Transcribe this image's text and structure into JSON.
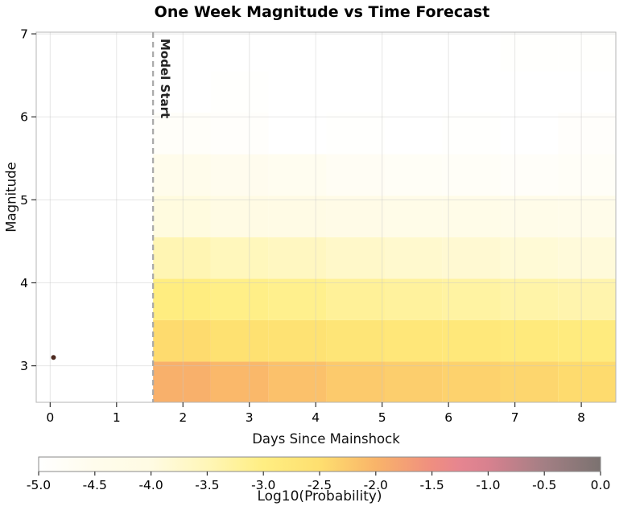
{
  "chart_data": {
    "type": "heatmap",
    "title": "One Week Magnitude vs Time Forecast",
    "xlabel": "Days Since Mainshock",
    "ylabel": "Magnitude",
    "xlim": [
      -0.21,
      8.52
    ],
    "ylim": [
      2.56,
      7.02
    ],
    "x_ticks": [
      0,
      1,
      2,
      3,
      4,
      5,
      6,
      7,
      8
    ],
    "y_ticks": [
      3,
      4,
      5,
      6,
      7
    ],
    "grid": true,
    "model_start_line": {
      "x": 1.55,
      "label": "Model Start",
      "color": "#a9a9a9"
    },
    "mainshock_point": {
      "x": 0.05,
      "y": 3.1,
      "color": "#4d2a20"
    },
    "heatmap": {
      "rows_bottom_to_top": true,
      "x_edges": [
        1.55,
        2.42,
        3.29,
        4.16,
        5.04,
        5.91,
        6.78,
        7.65,
        8.52
      ],
      "y_edges": [
        2.56,
        3.05,
        3.55,
        4.05,
        4.55,
        5.05,
        5.55,
        6.05,
        6.55,
        7.02
      ],
      "log10_probability": [
        [
          -1.95,
          -2.05,
          -2.15,
          -2.25,
          -2.3,
          -2.35,
          -2.4,
          -2.45
        ],
        [
          -2.45,
          -2.55,
          -2.6,
          -2.7,
          -2.75,
          -2.8,
          -2.85,
          -2.9
        ],
        [
          -2.95,
          -3.05,
          -3.1,
          -3.2,
          -3.25,
          -3.3,
          -3.35,
          -3.4
        ],
        [
          -3.45,
          -3.55,
          -3.6,
          -3.7,
          -3.75,
          -3.8,
          -3.85,
          -3.9
        ],
        [
          -3.95,
          -4.05,
          -4.1,
          -4.2,
          -4.25,
          -4.3,
          -4.35,
          -4.4
        ],
        [
          -4.45,
          -4.55,
          -4.6,
          -4.7,
          -4.75,
          -4.8,
          -4.85,
          -4.8
        ],
        [
          -4.85,
          -4.9,
          -5.0,
          -4.95,
          -5.0,
          -4.95,
          -5.0,
          -4.9
        ],
        [
          -5.0,
          -4.95,
          -5.0,
          -5.0,
          -5.0,
          -5.0,
          -5.0,
          -5.0
        ],
        [
          -5.0,
          -5.0,
          -5.0,
          -5.0,
          -5.0,
          -5.0,
          -4.95,
          -4.95
        ]
      ]
    },
    "colorbar": {
      "label": "Log10(Probability)",
      "range": [
        -5.0,
        0.0
      ],
      "ticks": [
        -5.0,
        -4.5,
        -4.0,
        -3.5,
        -3.0,
        -2.5,
        -2.0,
        -1.5,
        -1.0,
        -0.5,
        0.0
      ],
      "stops": [
        {
          "v": -5.0,
          "c": "#ffffff"
        },
        {
          "v": -4.5,
          "c": "#fffcec"
        },
        {
          "v": -4.0,
          "c": "#fffbe3"
        },
        {
          "v": -3.5,
          "c": "#fff6b8"
        },
        {
          "v": -3.0,
          "c": "#ffee82"
        },
        {
          "v": -2.5,
          "c": "#fedf6f"
        },
        {
          "v": -2.0,
          "c": "#f9b469"
        },
        {
          "v": -1.5,
          "c": "#ef8e80"
        },
        {
          "v": -1.25,
          "c": "#e68590"
        },
        {
          "v": -1.0,
          "c": "#d8818f"
        },
        {
          "v": -0.5,
          "c": "#a37f84"
        },
        {
          "v": 0.0,
          "c": "#7b7270"
        }
      ]
    }
  }
}
